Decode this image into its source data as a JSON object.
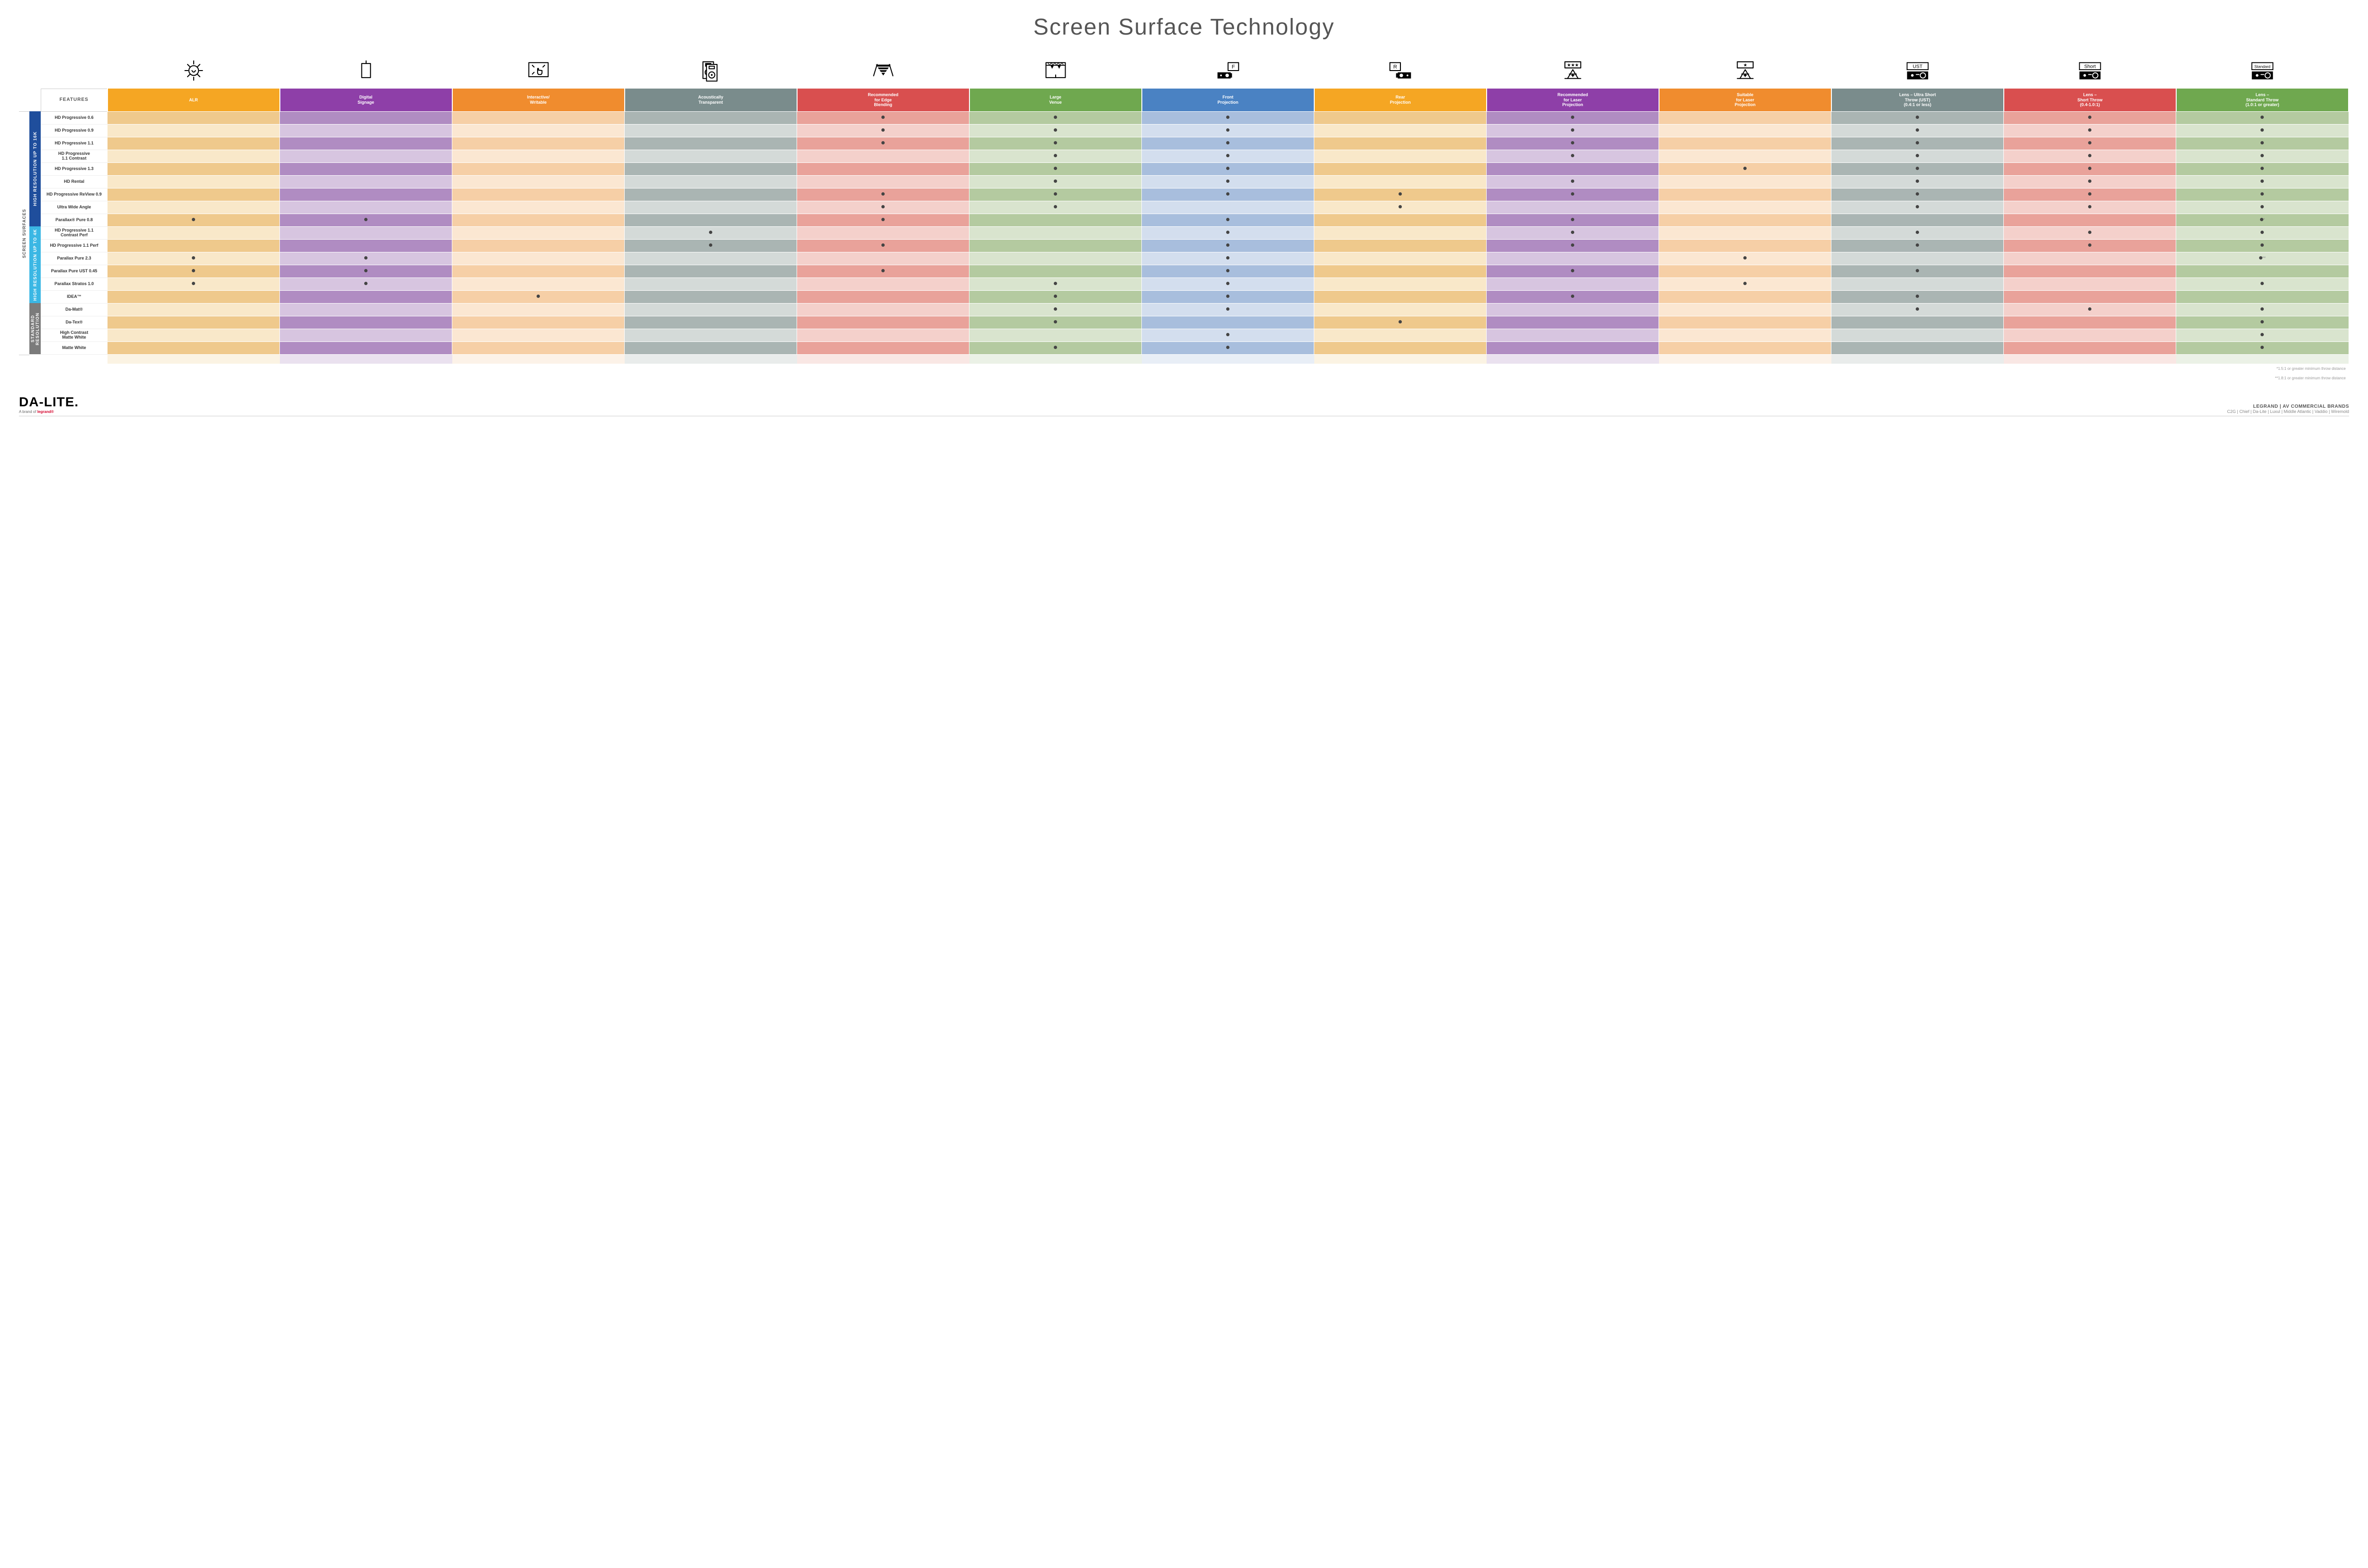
{
  "title": "Screen Surface Technology",
  "features_header": "FEATURES",
  "side_label": "SCREEN SURFACES",
  "columns": [
    {
      "key": "alr",
      "label": "ALR",
      "hdr": "#f5a623",
      "dark": "#efc98c",
      "light": "#f9e8c9"
    },
    {
      "key": "signage",
      "label": "Digital\nSignage",
      "hdr": "#8e3fa8",
      "dark": "#b08cc2",
      "light": "#d7c5e0"
    },
    {
      "key": "interactive",
      "label": "Interactive/\nWritable",
      "hdr": "#f08c2e",
      "dark": "#f6cfa6",
      "light": "#fbe7d2"
    },
    {
      "key": "acoustic",
      "label": "Acoustically\nTransparent",
      "hdr": "#7a8c8c",
      "dark": "#aab5b3",
      "light": "#d4dad8"
    },
    {
      "key": "edge",
      "label": "Recommended\nfor Edge\nBlending",
      "hdr": "#d94f4f",
      "dark": "#e9a29a",
      "light": "#f4d0cb"
    },
    {
      "key": "venue",
      "label": "Large\nVenue",
      "hdr": "#6fa84f",
      "dark": "#b4caa0",
      "light": "#d9e4ce"
    },
    {
      "key": "front",
      "label": "Front\nProjection",
      "hdr": "#4a82c3",
      "dark": "#a8bedd",
      "light": "#d3deee"
    },
    {
      "key": "rear",
      "label": "Rear\nProjection",
      "hdr": "#f5a623",
      "dark": "#efc98c",
      "light": "#f9e8c9"
    },
    {
      "key": "laser_rec",
      "label": "Recommended\nfor Laser\nProjection",
      "hdr": "#8e3fa8",
      "dark": "#b08cc2",
      "light": "#d7c5e0"
    },
    {
      "key": "laser_suit",
      "label": "Suitable\nfor Laser\nProjection",
      "hdr": "#f08c2e",
      "dark": "#f6cfa6",
      "light": "#fbe7d2"
    },
    {
      "key": "ust",
      "label": "Lens – Ultra Short\nThrow (UST)\n(0.4:1 or less)",
      "hdr": "#7a8c8c",
      "dark": "#aab5b3",
      "light": "#d4dad8"
    },
    {
      "key": "short",
      "label": "Lens –\nShort Throw\n(0.4-1.0:1)",
      "hdr": "#d94f4f",
      "dark": "#e9a29a",
      "light": "#f4d0cb"
    },
    {
      "key": "std",
      "label": "Lens –\nStandard Throw\n(1.0:1 or greater)",
      "hdr": "#6fa84f",
      "dark": "#b4caa0",
      "light": "#d9e4ce"
    }
  ],
  "groups": [
    {
      "key": "16k",
      "label": "HIGH RESOLUTION UP TO 16K",
      "class": "group-16k",
      "rows": [
        {
          "name": "HD Progressive 0.6",
          "dots": [
            "edge",
            "venue",
            "front",
            "laser_rec",
            "ust",
            "short",
            "std"
          ]
        },
        {
          "name": "HD Progressive 0.9",
          "dots": [
            "edge",
            "venue",
            "front",
            "laser_rec",
            "ust",
            "short",
            "std"
          ]
        },
        {
          "name": "HD Progressive 1.1",
          "dots": [
            "edge",
            "venue",
            "front",
            "laser_rec",
            "ust",
            "short",
            "std"
          ]
        },
        {
          "name": "HD Progressive\n1.1 Contrast",
          "dots": [
            "venue",
            "front",
            "laser_rec",
            "ust",
            "short",
            "std"
          ]
        },
        {
          "name": "HD Progressive 1.3",
          "dots": [
            "venue",
            "front",
            "laser_suit",
            "ust",
            "short",
            "std"
          ]
        },
        {
          "name": "HD Rental",
          "dots": [
            "venue",
            "front",
            "laser_rec",
            "ust",
            "short",
            "std"
          ]
        },
        {
          "name": "HD Progressive ReView 0.9",
          "dots": [
            "edge",
            "venue",
            "front",
            "rear",
            "laser_rec",
            "ust",
            "short",
            "std"
          ]
        },
        {
          "name": "Ultra Wide Angle",
          "dots": [
            "edge",
            "venue",
            "rear",
            "ust",
            "short",
            "std"
          ]
        },
        {
          "name": "Parallax® Pure 0.8",
          "dots": [
            "alr",
            "signage",
            "edge",
            "front",
            "laser_rec"
          ],
          "note": "*",
          "note_col": "std"
        }
      ]
    },
    {
      "key": "4k",
      "label": "HIGH RESOLUTION UP TO 4K",
      "class": "group-4k",
      "rows": [
        {
          "name": "HD Progressive 1.1\nContrast Perf",
          "dots": [
            "acoustic",
            "front",
            "laser_rec",
            "ust",
            "short",
            "std"
          ]
        },
        {
          "name": "HD Progressive 1.1 Perf",
          "dots": [
            "acoustic",
            "edge",
            "front",
            "laser_rec",
            "ust",
            "short",
            "std"
          ]
        },
        {
          "name": "Parallax Pure 2.3",
          "dots": [
            "alr",
            "signage",
            "front",
            "laser_suit"
          ],
          "note": "**",
          "note_col": "std"
        },
        {
          "name": "Parallax Pure UST 0.45",
          "dots": [
            "alr",
            "signage",
            "edge",
            "front",
            "laser_rec",
            "ust"
          ]
        },
        {
          "name": "Parallax Stratos 1.0",
          "dots": [
            "alr",
            "signage",
            "venue",
            "front",
            "laser_suit",
            "std"
          ]
        },
        {
          "name": "IDEA™",
          "dots": [
            "interactive",
            "venue",
            "front",
            "laser_rec",
            "ust"
          ]
        }
      ]
    },
    {
      "key": "std",
      "label": "STANDARD\nRESOLUTION",
      "class": "group-std",
      "rows": [
        {
          "name": "Da-Mat®",
          "dots": [
            "venue",
            "front",
            "ust",
            "short",
            "std"
          ]
        },
        {
          "name": "Da-Tex®",
          "dots": [
            "venue",
            "rear",
            "std"
          ]
        },
        {
          "name": "High Contrast\nMatte White",
          "dots": [
            "front",
            "std"
          ]
        },
        {
          "name": "Matte White",
          "dots": [
            "venue",
            "front",
            "std"
          ]
        }
      ]
    }
  ],
  "footnote1": "*1.5:1 or greater minimum throw distance",
  "footnote2": "**1.8:1 or greater minimum throw distance",
  "footer": {
    "brand": "DA-LITE.",
    "brand_sub_prefix": "A brand of ",
    "brand_sub_red": "legrand®",
    "right1": "LEGRAND | AV COMMERCIAL BRANDS",
    "right2": "C2G  |  Chief  |  Da-Lite  |  Luxul  |  Middle Atlantic  |  Vaddio  |  Wiremold"
  },
  "icons": {
    "alr": "bulb",
    "signage": "signage",
    "interactive": "touch",
    "acoustic": "speaker",
    "edge": "triangles",
    "venue": "truss",
    "front": "proj-f",
    "rear": "proj-r",
    "laser_rec": "laser3",
    "laser_suit": "laser1",
    "ust": "proj-ust",
    "short": "proj-short",
    "std": "proj-std"
  }
}
